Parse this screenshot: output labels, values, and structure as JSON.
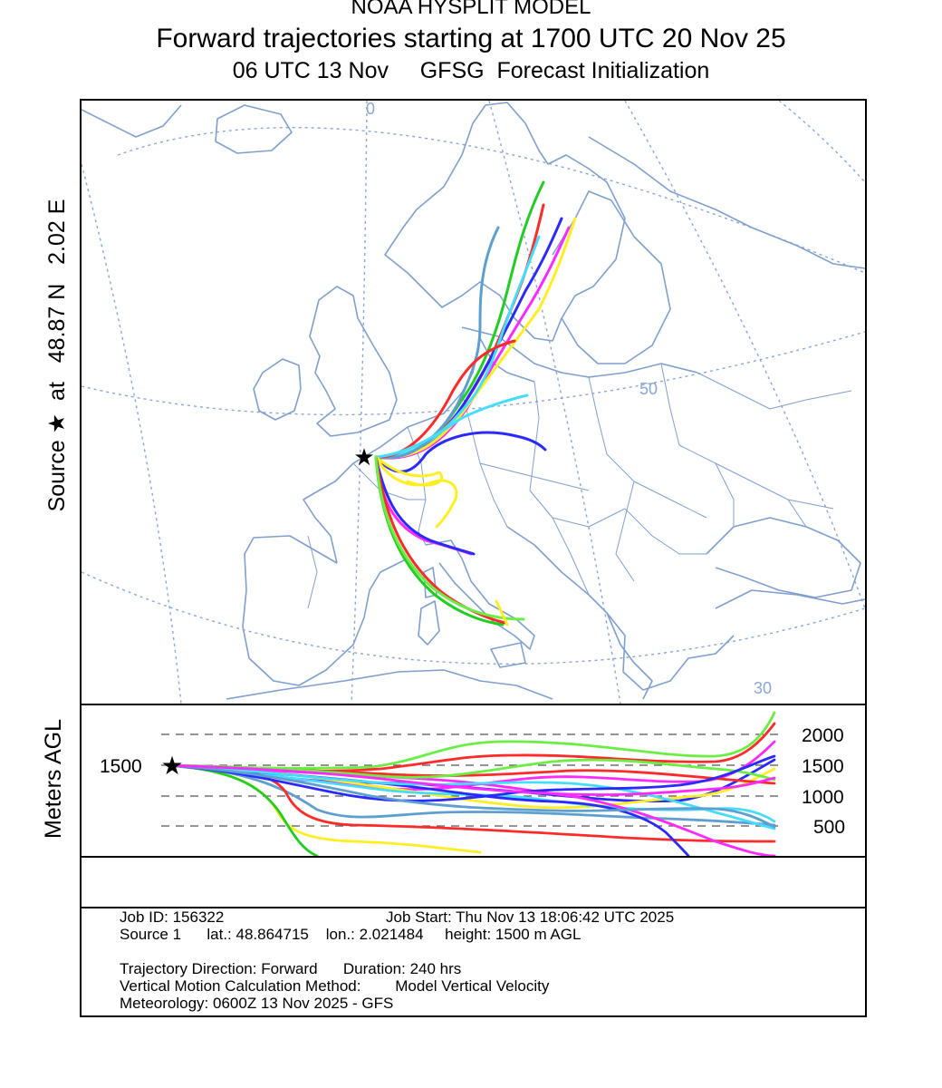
{
  "header": {
    "model": "NOAA HYSPLIT MODEL",
    "title": "Forward trajectories starting at 1700 UTC 20 Nov 25",
    "subtitle": "06 UTC 13 Nov     GFSG  Forecast Initialization"
  },
  "map": {
    "source_label": "Source ★  at   48.87 N   2.02 E",
    "graticule_labels": {
      "lon_0": "0",
      "lat_50": "50",
      "lat_30": "30"
    },
    "source_marker": "★",
    "colors": {
      "coast": "#7f9fcf",
      "grid": "#8aa6d6"
    }
  },
  "profile": {
    "ylabel": "Meters AGL",
    "start_label": "1500",
    "ticks": [
      "2000",
      "1500",
      "1000",
      "500"
    ],
    "start_marker": "★"
  },
  "trajectory_colors": [
    "#ff2a2a",
    "#2a2aff",
    "#22cc22",
    "#ff2aff",
    "#ffee22",
    "#44ddff",
    "#5f9fd0",
    "#6aee44"
  ],
  "info": {
    "job_id": "Job ID: 156322",
    "job_start": "Job Start: Thu Nov 13 18:06:42 UTC 2025",
    "source_line": "Source 1      lat.: 48.864715    lon.: 2.021484     height: 1500 m AGL",
    "direction": "Trajectory Direction: Forward      Duration: 240 hrs",
    "vertical": "Vertical Motion Calculation Method:        Model Vertical Velocity",
    "meteorology": "Meteorology: 0600Z 13 Nov 2025 - GFS"
  }
}
